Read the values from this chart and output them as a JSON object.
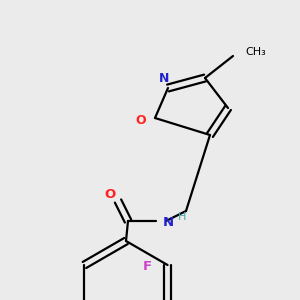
{
  "background_color": "#ebebeb",
  "bond_color": "#000000",
  "fig_size": [
    3.0,
    3.0
  ],
  "dpi": 100,
  "colors": {
    "O": "#ff2222",
    "N": "#2222cc",
    "F": "#cc44cc",
    "H": "#44aaaa",
    "C": "#000000",
    "bond": "#000000"
  },
  "lw": 1.6
}
